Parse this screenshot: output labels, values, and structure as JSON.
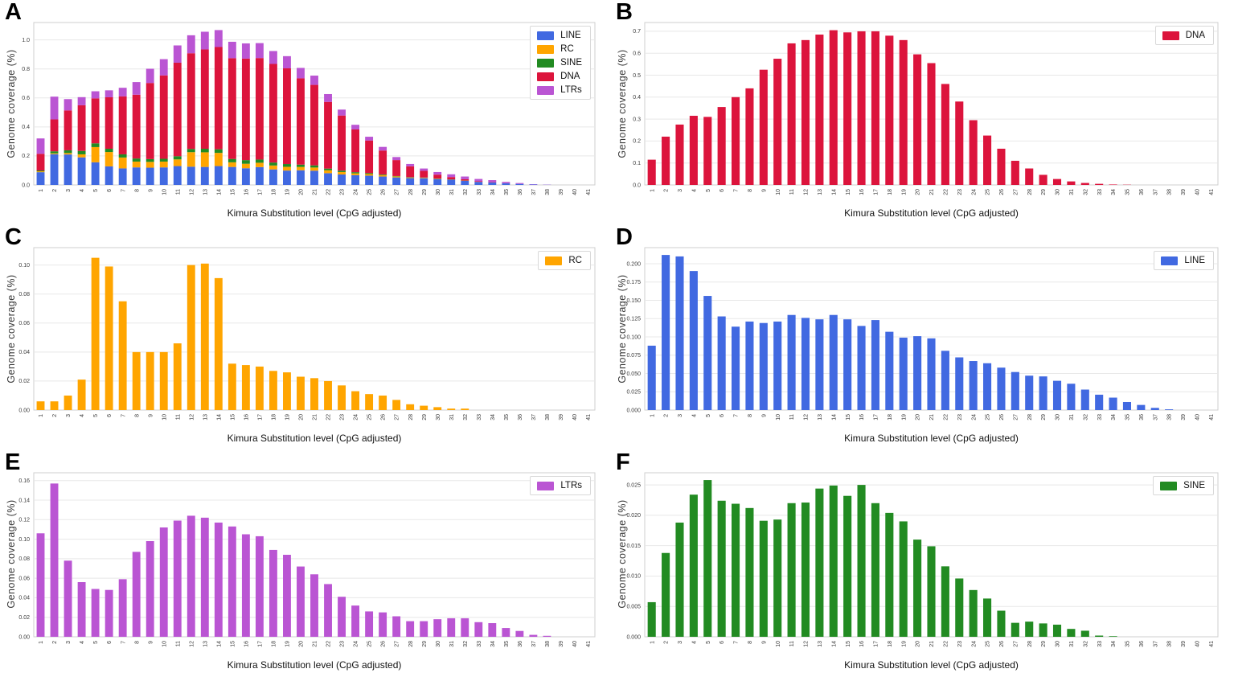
{
  "chart_data": {
    "type": "bar",
    "xlabel": "Kimura Substitution level (CpG adjusted)",
    "ylabel": "Genome coverage (%)",
    "grid": "horizontal",
    "legend_position": "upper right",
    "x": [
      1,
      2,
      3,
      4,
      5,
      6,
      7,
      8,
      9,
      10,
      11,
      12,
      13,
      14,
      15,
      16,
      17,
      18,
      19,
      20,
      21,
      22,
      23,
      24,
      25,
      26,
      27,
      28,
      29,
      30,
      31,
      32,
      33,
      34,
      35,
      36,
      37,
      38,
      39,
      40,
      41
    ],
    "series": [
      {
        "name": "LINE",
        "color": "#4169E1",
        "values": [
          0.088,
          0.212,
          0.21,
          0.19,
          0.156,
          0.128,
          0.114,
          0.121,
          0.119,
          0.121,
          0.13,
          0.126,
          0.124,
          0.13,
          0.124,
          0.115,
          0.123,
          0.107,
          0.099,
          0.101,
          0.098,
          0.081,
          0.072,
          0.067,
          0.064,
          0.058,
          0.052,
          0.047,
          0.046,
          0.04,
          0.036,
          0.028,
          0.021,
          0.017,
          0.011,
          0.007,
          0.003,
          0.001,
          0,
          0,
          0
        ]
      },
      {
        "name": "RC",
        "color": "#FFA500",
        "values": [
          0.006,
          0.006,
          0.01,
          0.021,
          0.105,
          0.099,
          0.075,
          0.04,
          0.04,
          0.04,
          0.046,
          0.1,
          0.101,
          0.091,
          0.032,
          0.031,
          0.03,
          0.027,
          0.026,
          0.023,
          0.022,
          0.02,
          0.017,
          0.013,
          0.011,
          0.01,
          0.007,
          0.004,
          0.003,
          0.002,
          0.001,
          0.001,
          0,
          0,
          0,
          0,
          0,
          0,
          0,
          0,
          0
        ]
      },
      {
        "name": "SINE",
        "color": "#228B22",
        "values": [
          0.0057,
          0.0138,
          0.0188,
          0.0234,
          0.0258,
          0.0224,
          0.0219,
          0.0212,
          0.0191,
          0.0193,
          0.022,
          0.0221,
          0.0244,
          0.0249,
          0.0232,
          0.025,
          0.022,
          0.0204,
          0.019,
          0.016,
          0.0149,
          0.0116,
          0.0096,
          0.0077,
          0.0063,
          0.0043,
          0.0023,
          0.0025,
          0.0022,
          0.002,
          0.0013,
          0.001,
          0.0002,
          0.0001,
          0,
          0,
          0,
          0,
          0,
          0,
          0
        ]
      },
      {
        "name": "DNA",
        "color": "#DC143C",
        "values": [
          0.115,
          0.22,
          0.275,
          0.315,
          0.31,
          0.355,
          0.4,
          0.44,
          0.525,
          0.575,
          0.645,
          0.66,
          0.685,
          0.705,
          0.695,
          0.7,
          0.7,
          0.68,
          0.66,
          0.595,
          0.555,
          0.46,
          0.38,
          0.295,
          0.225,
          0.165,
          0.11,
          0.075,
          0.046,
          0.027,
          0.016,
          0.009,
          0.005,
          0.002,
          0.001,
          0,
          0,
          0,
          0,
          0,
          0
        ]
      },
      {
        "name": "LTRs",
        "color": "#BA55D3",
        "values": [
          0.106,
          0.157,
          0.078,
          0.056,
          0.049,
          0.048,
          0.059,
          0.087,
          0.098,
          0.112,
          0.119,
          0.124,
          0.122,
          0.117,
          0.113,
          0.105,
          0.103,
          0.089,
          0.084,
          0.072,
          0.064,
          0.054,
          0.041,
          0.032,
          0.026,
          0.025,
          0.021,
          0.016,
          0.016,
          0.018,
          0.019,
          0.019,
          0.015,
          0.014,
          0.009,
          0.006,
          0.002,
          0.001,
          0,
          0,
          0
        ]
      }
    ],
    "panels": [
      {
        "label": "A",
        "mode": "stacked",
        "series": [
          "LINE",
          "RC",
          "SINE",
          "DNA",
          "LTRs"
        ],
        "legend": [
          "LINE",
          "RC",
          "SINE",
          "DNA",
          "LTRs"
        ],
        "yticks": [
          "0.0",
          "0.2",
          "0.4",
          "0.6",
          "0.8",
          "1.0"
        ],
        "ymax": 1.12
      },
      {
        "label": "B",
        "mode": "single",
        "series": [
          "DNA"
        ],
        "legend": [
          "DNA"
        ],
        "yticks": [
          "0.0",
          "0.1",
          "0.2",
          "0.3",
          "0.4",
          "0.5",
          "0.6",
          "0.7"
        ],
        "ymax": 0.74
      },
      {
        "label": "C",
        "mode": "single",
        "series": [
          "RC"
        ],
        "legend": [
          "RC"
        ],
        "yticks": [
          "0.00",
          "0.02",
          "0.04",
          "0.06",
          "0.08",
          "0.10"
        ],
        "ymax": 0.112
      },
      {
        "label": "D",
        "mode": "single",
        "series": [
          "LINE"
        ],
        "legend": [
          "LINE"
        ],
        "yticks": [
          "0.000",
          "0.025",
          "0.050",
          "0.075",
          "0.100",
          "0.125",
          "0.150",
          "0.175",
          "0.200"
        ],
        "ymax": 0.222
      },
      {
        "label": "E",
        "mode": "single",
        "series": [
          "LTRs"
        ],
        "legend": [
          "LTRs"
        ],
        "yticks": [
          "0.00",
          "0.02",
          "0.04",
          "0.06",
          "0.08",
          "0.10",
          "0.12",
          "0.14",
          "0.16"
        ],
        "ymax": 0.168
      },
      {
        "label": "F",
        "mode": "single",
        "series": [
          "SINE"
        ],
        "legend": [
          "SINE"
        ],
        "yticks": [
          "0.000",
          "0.005",
          "0.010",
          "0.015",
          "0.020",
          "0.025"
        ],
        "ymax": 0.027
      }
    ]
  }
}
